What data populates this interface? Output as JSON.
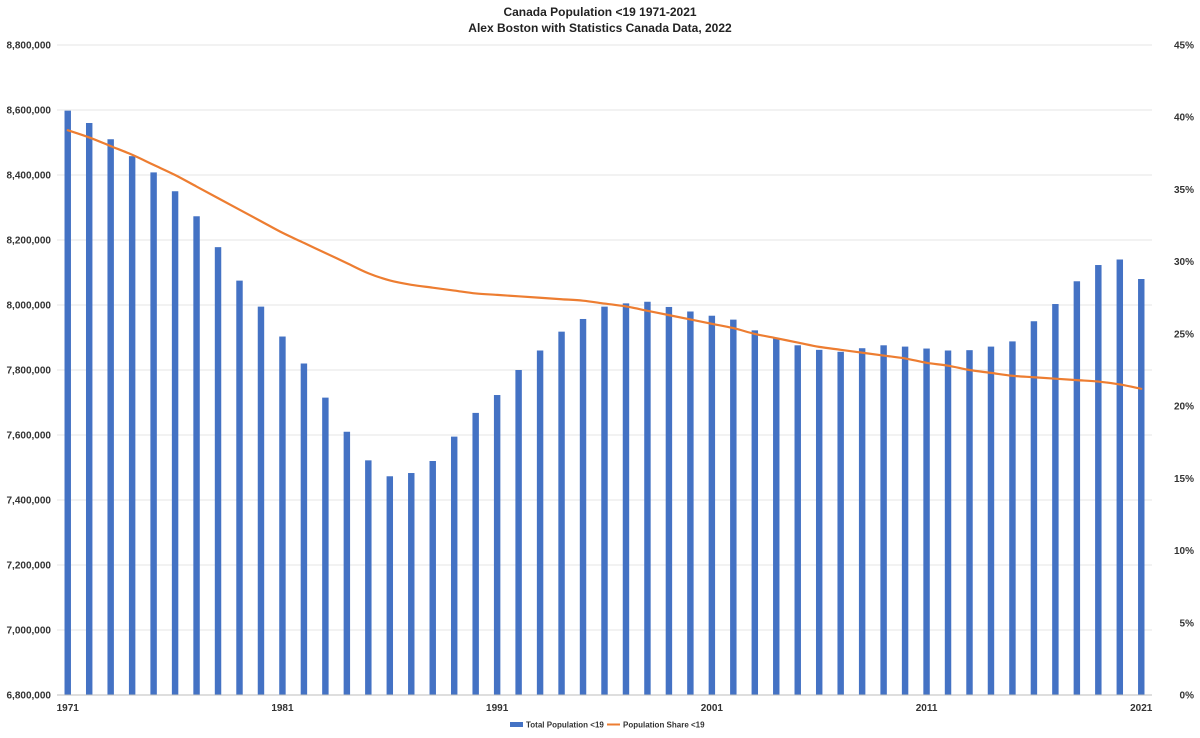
{
  "chart_data": {
    "type": "bar+line",
    "title": "Canada Population <19  1971-2021",
    "subtitle": "Alex Boston with Statistics Canada Data, 2022",
    "x": [
      1971,
      1972,
      1973,
      1974,
      1975,
      1976,
      1977,
      1978,
      1979,
      1980,
      1981,
      1982,
      1983,
      1984,
      1985,
      1986,
      1987,
      1988,
      1989,
      1990,
      1991,
      1992,
      1993,
      1994,
      1995,
      1996,
      1997,
      1998,
      1999,
      2000,
      2001,
      2002,
      2003,
      2004,
      2005,
      2006,
      2007,
      2008,
      2009,
      2010,
      2011,
      2012,
      2013,
      2014,
      2015,
      2016,
      2017,
      2018,
      2019,
      2020,
      2021
    ],
    "x_tick_labels": [
      "1971",
      "1981",
      "1991",
      "2001",
      "2011",
      "2021"
    ],
    "series": [
      {
        "name": "Total Population <19",
        "type": "bar",
        "axis": "left",
        "color": "#4472C4",
        "values": [
          8598000,
          8560000,
          8510000,
          8458000,
          8408000,
          8350000,
          8273000,
          8178000,
          8075000,
          7995000,
          7903000,
          7820000,
          7715000,
          7610000,
          7522000,
          7473000,
          7483000,
          7520000,
          7595000,
          7668000,
          7723000,
          7800000,
          7860000,
          7918000,
          7957000,
          7995000,
          8005000,
          8010000,
          7994000,
          7980000,
          7967000,
          7955000,
          7922000,
          7897000,
          7876000,
          7862000,
          7856000,
          7867000,
          7876000,
          7872000,
          7866000,
          7860000,
          7861000,
          7872000,
          7888000,
          7950000,
          8003000,
          8073000,
          8123000,
          8140000,
          8080000
        ]
      },
      {
        "name": "Population Share <19",
        "type": "line",
        "axis": "right",
        "color": "#ED7D31",
        "values": [
          39.1,
          38.6,
          38.0,
          37.4,
          36.7,
          36.0,
          35.2,
          34.4,
          33.6,
          32.8,
          32.0,
          31.3,
          30.6,
          29.9,
          29.2,
          28.7,
          28.4,
          28.2,
          28.0,
          27.8,
          27.7,
          27.6,
          27.5,
          27.4,
          27.3,
          27.1,
          26.9,
          26.6,
          26.3,
          26.0,
          25.7,
          25.4,
          25.0,
          24.7,
          24.4,
          24.1,
          23.9,
          23.7,
          23.5,
          23.3,
          23.0,
          22.8,
          22.5,
          22.3,
          22.1,
          22.0,
          21.9,
          21.8,
          21.7,
          21.5,
          21.2
        ]
      }
    ],
    "y_left": {
      "min": 6800000,
      "max": 8800000,
      "step": 200000,
      "tick_labels": [
        "6,800,000",
        "7,000,000",
        "7,200,000",
        "7,400,000",
        "7,600,000",
        "7,800,000",
        "8,000,000",
        "8,200,000",
        "8,400,000",
        "8,600,000",
        "8,800,000"
      ]
    },
    "y_right": {
      "min": 0,
      "max": 45,
      "step": 5,
      "tick_labels": [
        "0%",
        "5%",
        "10%",
        "15%",
        "20%",
        "25%",
        "30%",
        "35%",
        "40%",
        "45%"
      ]
    },
    "grid": true,
    "legend": {
      "placement": "bottom-center",
      "entries": [
        "Total Population <19",
        "Population Share <19"
      ]
    }
  }
}
